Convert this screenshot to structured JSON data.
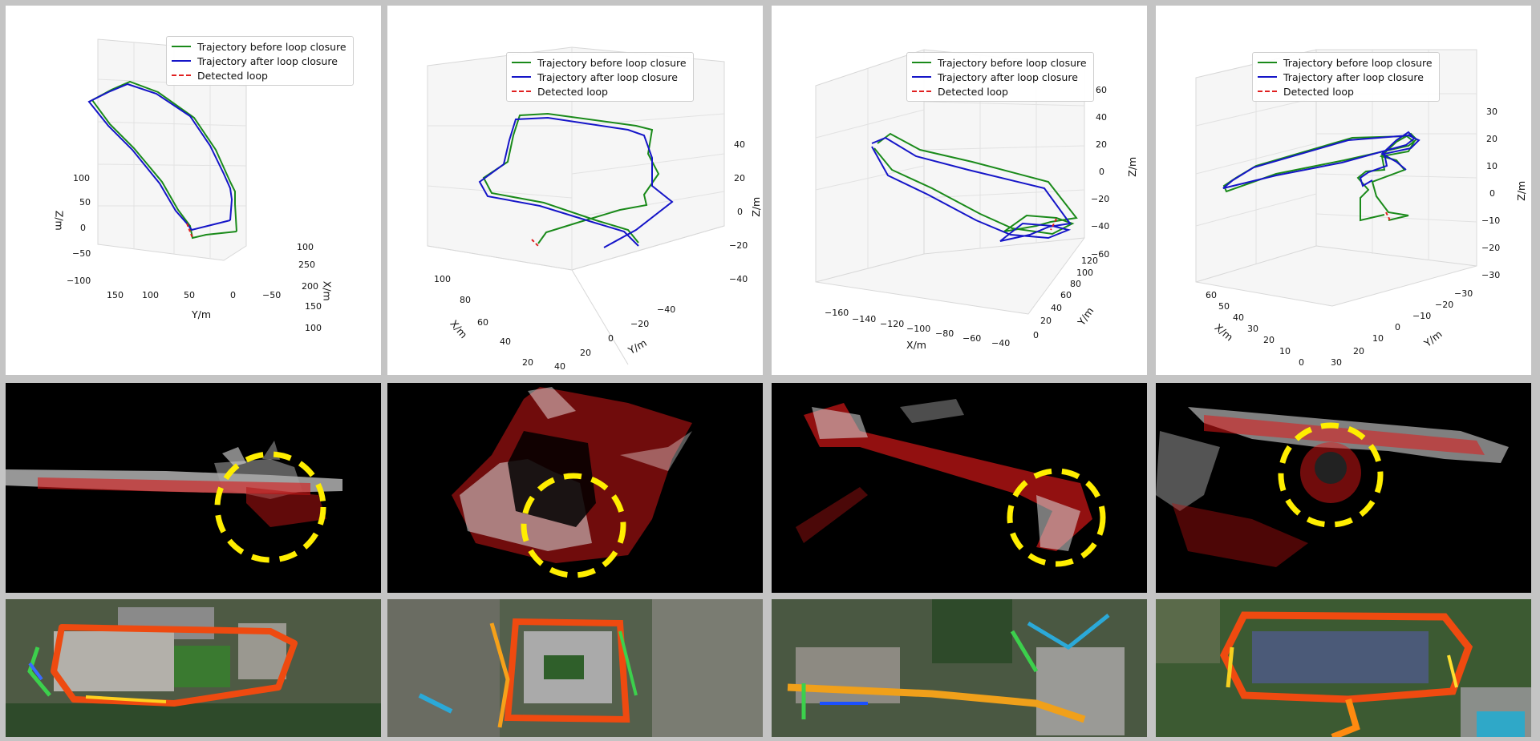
{
  "legend": {
    "before": "Trajectory before loop closure",
    "after": "Trajectory after loop closure",
    "loop": "Detected loop"
  },
  "colors": {
    "before": "#1a8a1a",
    "after": "#1515c8",
    "loop": "#e02020",
    "highlight": "#ffee00"
  },
  "plots": [
    {
      "axis_labels": {
        "x": "X/m",
        "y": "Y/m",
        "z": "Z/m"
      },
      "x_ticks": [
        "250",
        "200",
        "150",
        "100"
      ],
      "y_ticks": [
        "150",
        "100",
        "50",
        "0",
        "−50"
      ],
      "z_ticks": [
        "100",
        "50",
        "0",
        "−50",
        "−100"
      ],
      "edge_tick": "100"
    },
    {
      "axis_labels": {
        "x": "X/m",
        "y": "Y/m",
        "z": "Z/m"
      },
      "x_ticks": [
        "100",
        "80",
        "60",
        "40",
        "20"
      ],
      "y_ticks": [
        "40",
        "20",
        "0",
        "−20",
        "−40"
      ],
      "z_ticks": [
        "40",
        "20",
        "0",
        "−20",
        "−40"
      ]
    },
    {
      "axis_labels": {
        "x": "X/m",
        "y": "Y/m",
        "z": "Z/m"
      },
      "x_ticks": [
        "−160",
        "−140",
        "−120",
        "−100",
        "−80",
        "−60",
        "−40"
      ],
      "y_ticks": [
        "0",
        "20",
        "40",
        "60",
        "80",
        "100",
        "120"
      ],
      "z_ticks": [
        "60",
        "40",
        "20",
        "0",
        "−20",
        "−40",
        "−60"
      ]
    },
    {
      "axis_labels": {
        "x": "X/m",
        "y": "Y/m",
        "z": "Z/m"
      },
      "x_ticks": [
        "60",
        "50",
        "40",
        "30",
        "20",
        "10",
        "0"
      ],
      "y_ticks": [
        "30",
        "20",
        "10",
        "0",
        "−10",
        "−20",
        "−30"
      ],
      "z_ticks": [
        "30",
        "20",
        "10",
        "0",
        "−10",
        "−20",
        "−30"
      ]
    }
  ],
  "map_views": [
    {
      "highlight": "loop-region"
    },
    {
      "highlight": "loop-region"
    },
    {
      "highlight": "loop-region"
    },
    {
      "highlight": "loop-region"
    }
  ]
}
